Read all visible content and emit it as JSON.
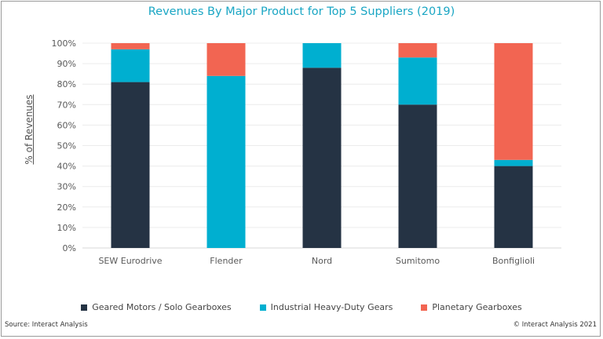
{
  "chart_data": {
    "type": "bar",
    "stacked": true,
    "title": "Revenues By Major Product for Top 5 Suppliers (2019)",
    "ylabel": "% of Revenues",
    "xlabel": "",
    "categories": [
      "SEW Eurodrive",
      "Flender",
      "Nord",
      "Sumitomo",
      "Bonfiglioli"
    ],
    "series": [
      {
        "name": "Geared Motors / Solo Gearboxes",
        "color": "#253344",
        "values": [
          81,
          0,
          88,
          70,
          40
        ]
      },
      {
        "name": "Industrial Heavy-Duty Gears",
        "color": "#00afd0",
        "values": [
          16,
          84,
          12,
          23,
          3
        ]
      },
      {
        "name": "Planetary Gearboxes",
        "color": "#f26552",
        "values": [
          3,
          16,
          0,
          7,
          57
        ]
      }
    ],
    "ylim": [
      0,
      100
    ],
    "yticks": [
      "0%",
      "10%",
      "20%",
      "30%",
      "40%",
      "50%",
      "60%",
      "70%",
      "80%",
      "90%",
      "100%"
    ],
    "grid": true,
    "legend": "bottom"
  },
  "footer": {
    "source": "Source: Interact Analysis",
    "copyright": "© Interact Analysis 2021"
  }
}
